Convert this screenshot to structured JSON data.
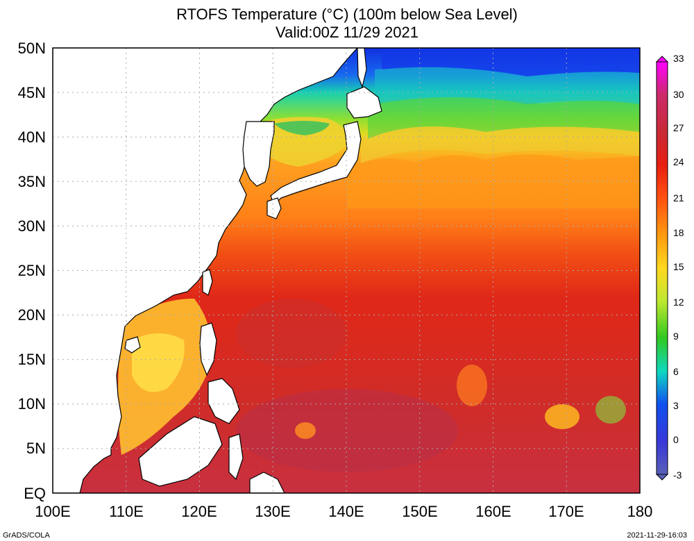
{
  "title": {
    "line1": "RTOFS Temperature (°C) (100m below Sea Level)",
    "line2": "Valid:00Z 11/29 2021"
  },
  "map": {
    "lat_labels": [
      "50N",
      "45N",
      "40N",
      "35N",
      "30N",
      "25N",
      "20N",
      "15N",
      "10N",
      "5N",
      "EQ"
    ],
    "lon_labels": [
      "100E",
      "110E",
      "120E",
      "130E",
      "140E",
      "150E",
      "160E",
      "170E",
      "180"
    ],
    "lat_range": [
      0,
      50
    ],
    "lon_range": [
      100,
      180
    ],
    "grid": "dotted"
  },
  "colorbar": {
    "ticks": [
      "33",
      "30",
      "27",
      "24",
      "21",
      "18",
      "15",
      "12",
      "9",
      "6",
      "3",
      "0",
      "-3"
    ],
    "range": [
      -3,
      33
    ],
    "colors": [
      "#ff00ff",
      "#cc2a6a",
      "#c82a36",
      "#e81e10",
      "#ff5010",
      "#ff9a10",
      "#ffd820",
      "#bfe830",
      "#30c820",
      "#10d8c0",
      "#1050f0",
      "#3838d8",
      "#5860b8"
    ]
  },
  "footer": {
    "left": "GrADS/COLA",
    "right": "2021-11-29-16:03"
  }
}
